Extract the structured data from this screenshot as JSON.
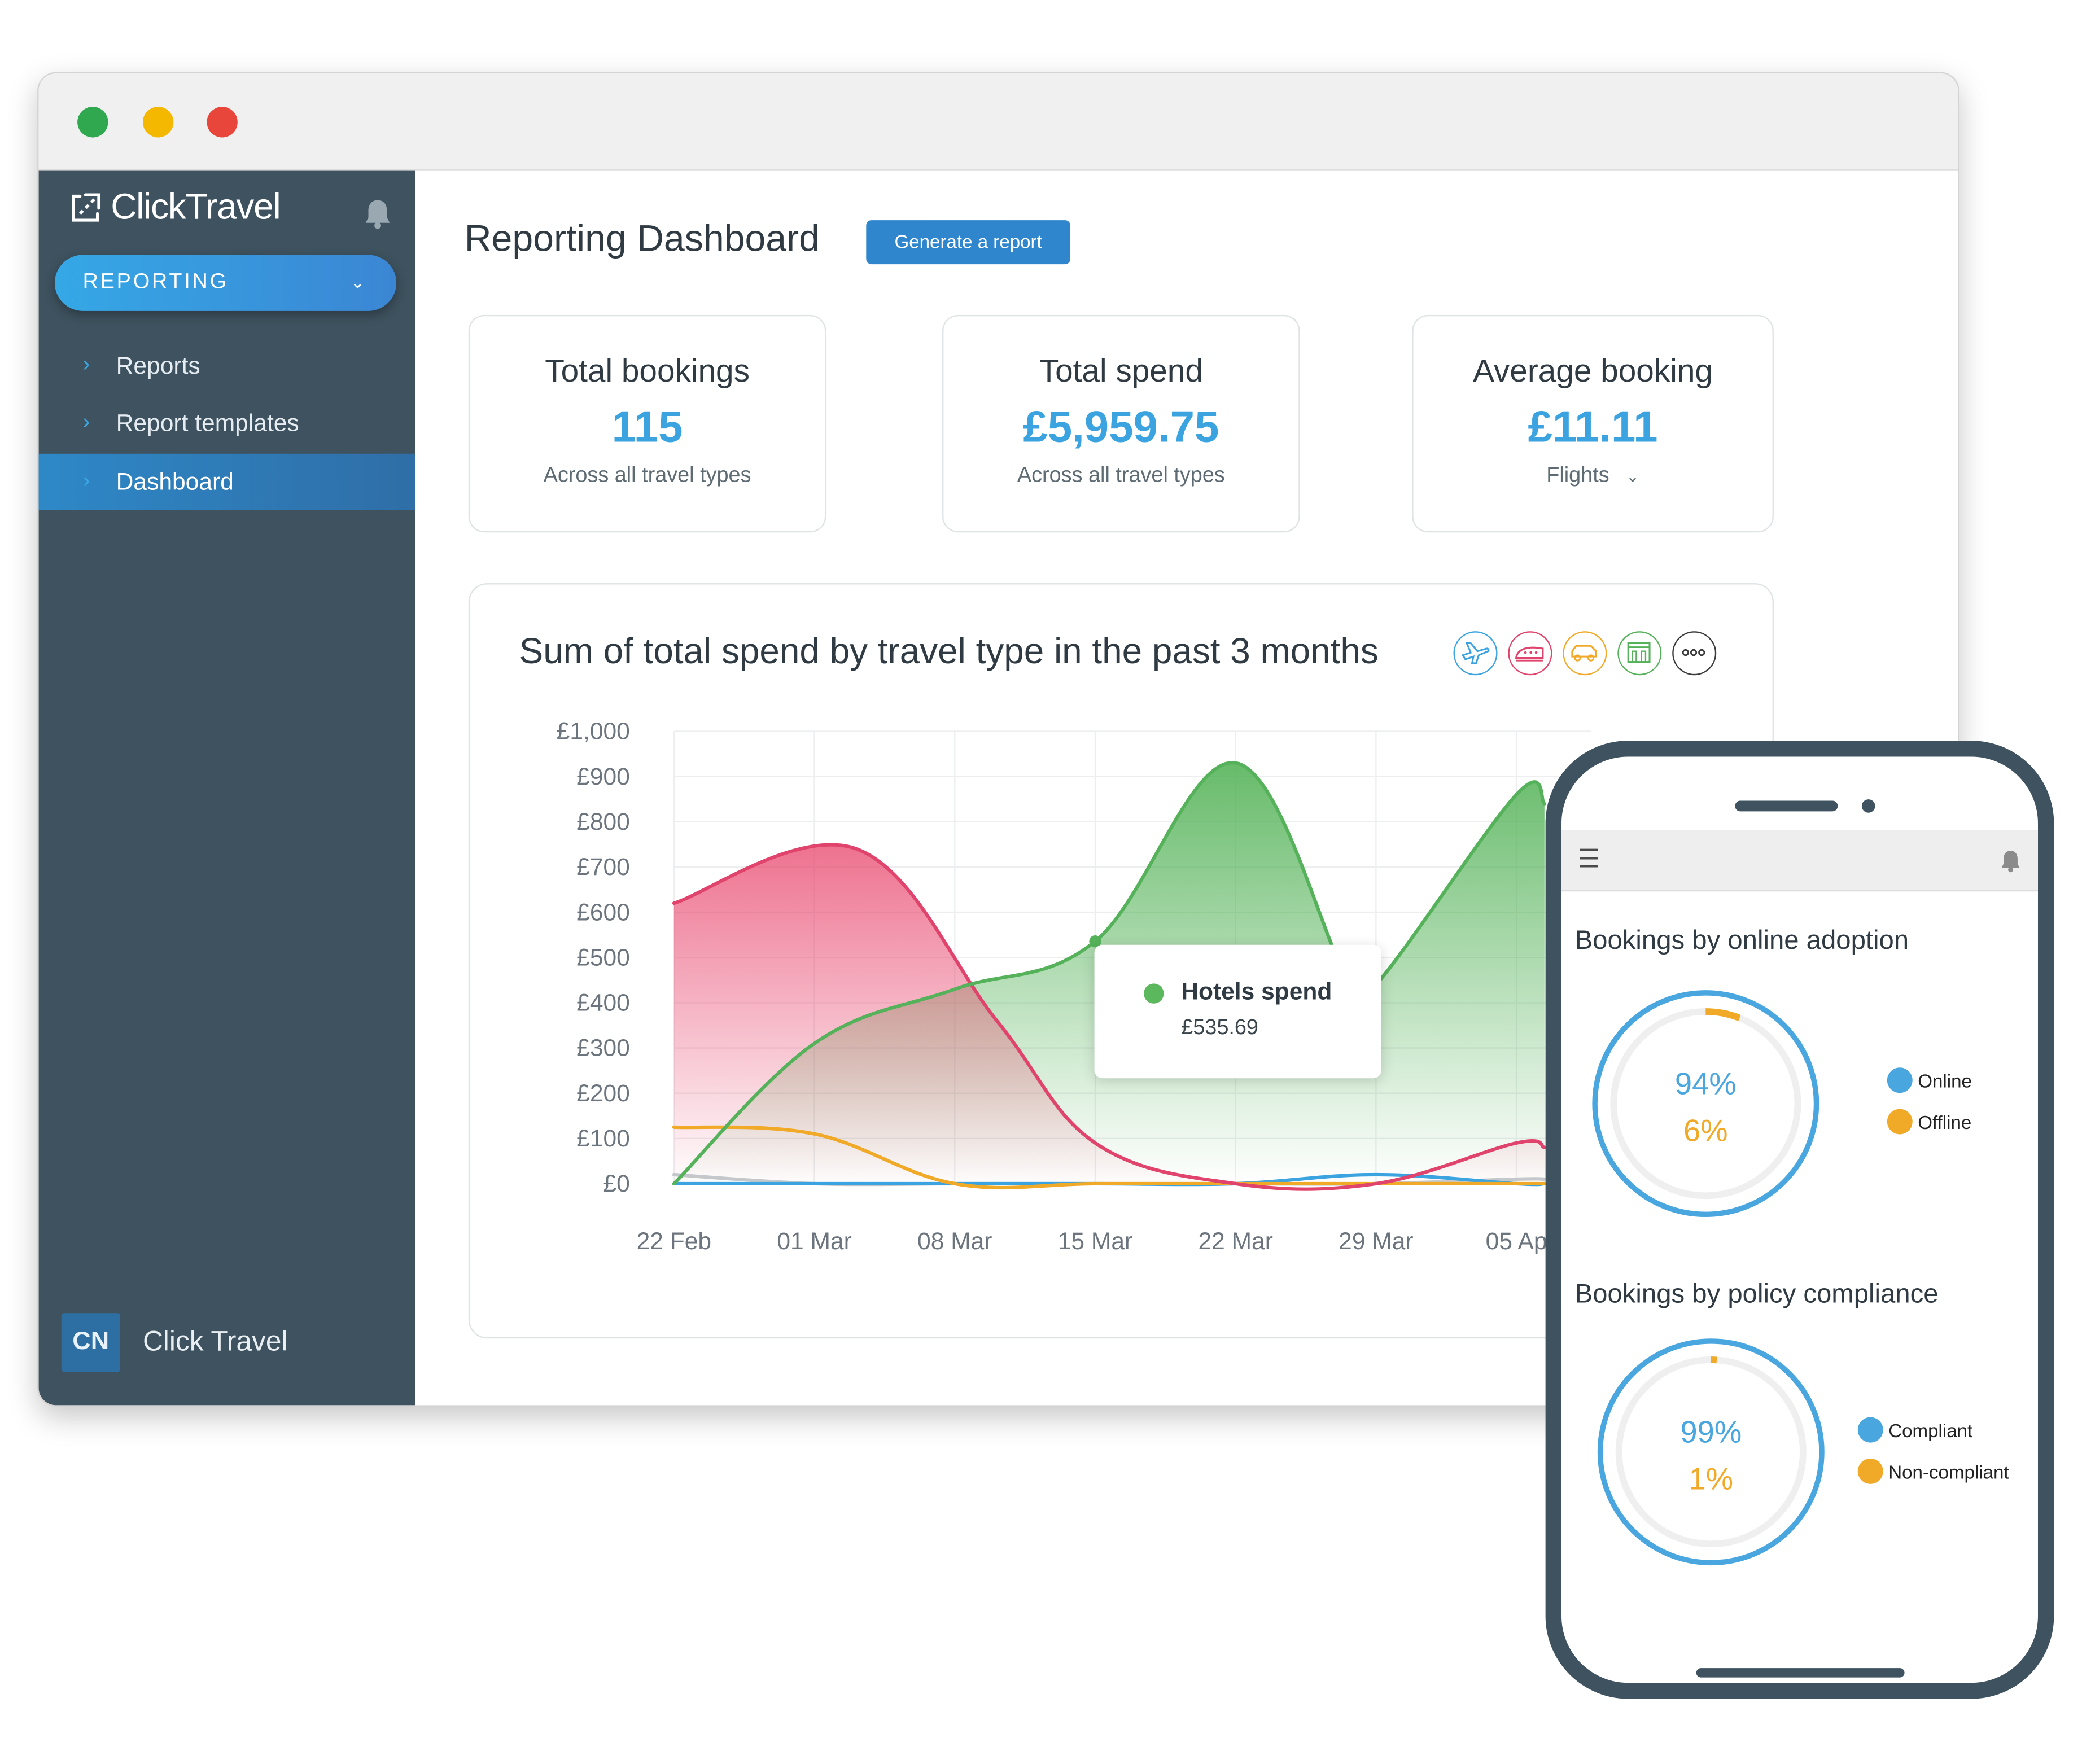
{
  "window": {
    "traffic_lights": [
      "#2fa84f",
      "#f5b800",
      "#e8463a"
    ]
  },
  "sidebar": {
    "logo_text": "ClickTravel",
    "reporting_label": "REPORTING",
    "items": [
      {
        "label": "Reports",
        "active": false
      },
      {
        "label": "Report templates",
        "active": false
      },
      {
        "label": "Dashboard",
        "active": true
      }
    ],
    "user": {
      "initials": "CN",
      "name": "Click Travel"
    }
  },
  "header": {
    "title": "Reporting Dashboard",
    "generate_button": "Generate a report"
  },
  "stats": [
    {
      "title": "Total bookings",
      "value": "115",
      "sub": "Across all travel types"
    },
    {
      "title": "Total spend",
      "value": "£5,959.75",
      "sub": "Across all travel types"
    },
    {
      "title": "Average booking",
      "value": "£11.11",
      "sub": "Flights"
    }
  ],
  "chart": {
    "title": "Sum of total spend by travel type in the past 3 months",
    "type_icons": [
      {
        "name": "plane-icon",
        "color": "#3aa3e0"
      },
      {
        "name": "train-icon",
        "color": "#e0436b"
      },
      {
        "name": "car-icon",
        "color": "#f1a928"
      },
      {
        "name": "hotel-icon",
        "color": "#55b25a"
      },
      {
        "name": "more-icon",
        "color": "#3a3a3a"
      }
    ],
    "tooltip": {
      "label": "Hotels spend",
      "value": "£535.69"
    }
  },
  "chart_data": {
    "type": "area",
    "x": [
      "22 Feb",
      "01 Mar",
      "08 Mar",
      "15 Mar",
      "22 Mar",
      "29 Mar",
      "05 Ap"
    ],
    "y_ticks": [
      "£0",
      "£100",
      "£200",
      "£300",
      "£400",
      "£500",
      "£600",
      "£700",
      "£800",
      "£900",
      "£1,000"
    ],
    "ylim": [
      0,
      1000
    ],
    "grid": true,
    "series": [
      {
        "name": "Trains",
        "color": "#e0436b",
        "points": [
          [
            0,
            620
          ],
          [
            1.3,
            740
          ],
          [
            2.3,
            360
          ],
          [
            3,
            90
          ],
          [
            4,
            0
          ],
          [
            5,
            0
          ],
          [
            6,
            90
          ],
          [
            6.2,
            80
          ]
        ]
      },
      {
        "name": "Hotels spend",
        "color": "#55b25a",
        "points": [
          [
            0,
            0
          ],
          [
            1,
            310
          ],
          [
            2,
            430
          ],
          [
            3,
            535.69
          ],
          [
            4,
            930
          ],
          [
            4.8,
            450
          ],
          [
            5,
            440
          ],
          [
            6,
            860
          ],
          [
            6.2,
            840
          ]
        ]
      },
      {
        "name": "Cars",
        "color": "#f1a928",
        "points": [
          [
            0,
            125
          ],
          [
            1,
            110
          ],
          [
            2,
            0
          ],
          [
            3,
            0
          ],
          [
            4,
            0
          ],
          [
            5,
            0
          ],
          [
            6,
            0
          ],
          [
            6.2,
            0
          ]
        ]
      },
      {
        "name": "Flights",
        "color": "#3aa3e0",
        "points": [
          [
            0,
            0
          ],
          [
            1,
            0
          ],
          [
            2,
            0
          ],
          [
            3,
            0
          ],
          [
            4,
            0
          ],
          [
            5,
            20
          ],
          [
            6,
            0
          ],
          [
            6.2,
            0
          ]
        ]
      },
      {
        "name": "Other",
        "color": "#c4c8cb",
        "points": [
          [
            0,
            20
          ],
          [
            1,
            0
          ],
          [
            2,
            0
          ],
          [
            3,
            0
          ],
          [
            4,
            0
          ],
          [
            5,
            0
          ],
          [
            6,
            10
          ],
          [
            6.2,
            10
          ]
        ]
      }
    ]
  },
  "mobile": {
    "sections": [
      {
        "title": "Bookings by online adoption",
        "primary": "94%",
        "secondary": "6%",
        "legend": [
          "Online",
          "Offline"
        ],
        "values": [
          94,
          6
        ]
      },
      {
        "title": "Bookings by policy compliance",
        "primary": "99%",
        "secondary": "1%",
        "legend": [
          "Compliant",
          "Non-compliant"
        ],
        "values": [
          99,
          1
        ]
      }
    ],
    "colors": {
      "primary": "#4aa6df",
      "secondary": "#f1a928"
    }
  }
}
